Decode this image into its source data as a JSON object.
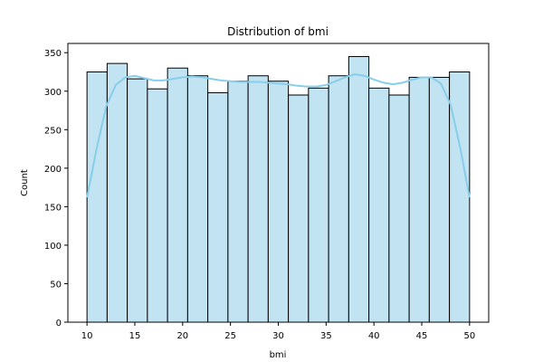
{
  "chart_data": {
    "type": "histogram",
    "title": "Distribution of bmi",
    "xlabel": "bmi",
    "ylabel": "Count",
    "xlim": [
      8.0,
      52.0
    ],
    "ylim": [
      0,
      362
    ],
    "x_ticks": [
      10,
      15,
      20,
      25,
      30,
      35,
      40,
      45,
      50
    ],
    "y_ticks": [
      0,
      50,
      100,
      150,
      200,
      250,
      300,
      350
    ],
    "bin_edges": [
      10.0,
      12.105,
      14.211,
      16.316,
      18.421,
      20.526,
      22.632,
      24.737,
      26.842,
      28.947,
      31.053,
      33.158,
      35.263,
      37.368,
      39.474,
      41.579,
      43.684,
      45.789,
      47.895,
      50.0
    ],
    "counts": [
      325,
      336,
      316,
      303,
      330,
      320,
      298,
      313,
      320,
      313,
      295,
      304,
      320,
      345,
      304,
      295,
      318,
      318,
      325
    ],
    "kde": {
      "x": [
        10,
        11,
        12,
        13,
        14,
        15,
        16,
        17,
        18,
        19,
        20,
        21,
        22,
        23,
        24,
        25,
        26,
        27,
        28,
        29,
        30,
        31,
        32,
        33,
        34,
        35,
        36,
        37,
        38,
        39,
        40,
        41,
        42,
        43,
        44,
        45,
        46,
        47,
        48,
        49,
        50
      ],
      "y": [
        162,
        225,
        280,
        308,
        318,
        320,
        317,
        314,
        314,
        316,
        318,
        319,
        318,
        316,
        314,
        313,
        312,
        312,
        312,
        311,
        310,
        309,
        307,
        306,
        306,
        308,
        313,
        318,
        322,
        320,
        315,
        311,
        309,
        311,
        315,
        318,
        318,
        310,
        283,
        228,
        162
      ]
    },
    "bar_color": "#c2e3f2",
    "bar_edge_color": "#000000",
    "kde_color": "#87ceeb",
    "grid": false,
    "legend": "none"
  }
}
